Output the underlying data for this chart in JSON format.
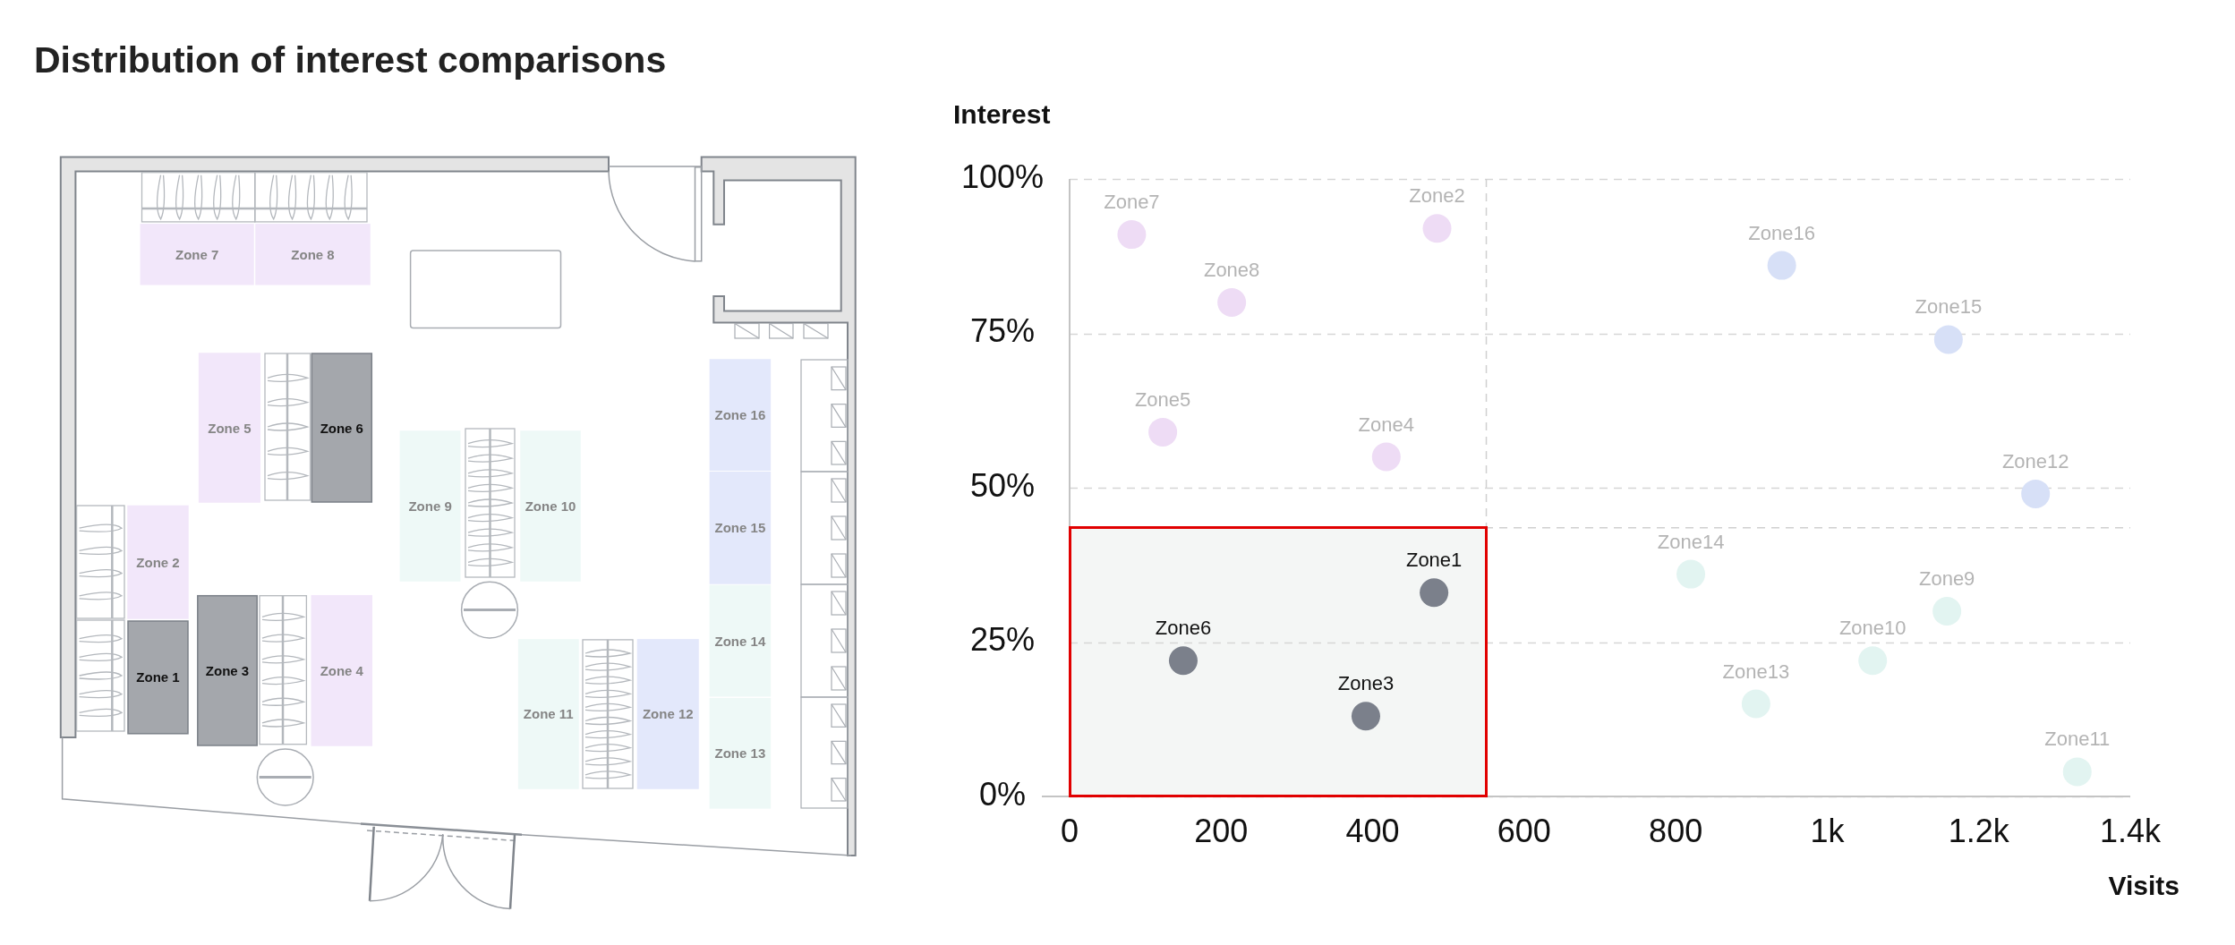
{
  "chart_data": [
    {
      "type": "other",
      "title": "Distribution of interest comparisons",
      "categories": [
        "Zone 1",
        "Zone 2",
        "Zone 3",
        "Zone 4",
        "Zone 5",
        "Zone 6",
        "Zone 7",
        "Zone 8",
        "Zone 9",
        "Zone 10",
        "Zone 11",
        "Zone 12",
        "Zone 13",
        "Zone 14",
        "Zone 15",
        "Zone 16"
      ],
      "colors": [
        "#a4a7ac",
        "#f2e7fa",
        "#a4a7ac",
        "#f2e7fa",
        "#f2e7fa",
        "#a4a7ac",
        "#f2e7fa",
        "#f2e7fa",
        "#eef9f7",
        "#eef9f7",
        "#eef9f7",
        "#e3e8fb",
        "#eef9f7",
        "#eef9f7",
        "#e3e8fb",
        "#e3e8fb"
      ]
    },
    {
      "type": "scatter",
      "xlabel": "Visits",
      "ylabel": "Interest",
      "xlim": [
        0,
        1400
      ],
      "xticks": [
        0,
        200,
        400,
        600,
        800,
        {
          "value": 1000,
          "label": "1k"
        },
        {
          "value": 1200,
          "label": "1.2k"
        },
        {
          "value": 1400,
          "label": "1.4k"
        }
      ],
      "ylim": [
        0,
        100
      ],
      "yticks": [
        {
          "value": 0,
          "label": "0%"
        },
        {
          "value": 25,
          "label": "25%"
        },
        {
          "value": 50,
          "label": "50%"
        },
        {
          "value": 75,
          "label": "75%"
        },
        {
          "value": 100,
          "label": "100%"
        }
      ],
      "grid": "y",
      "marker": "circle",
      "ref_lines": [
        {
          "axis": "x",
          "value": 550,
          "color": "#d0d0d0",
          "line_style": "dashed"
        },
        {
          "axis": "y",
          "value": 43.5,
          "color": "#d0d0d0",
          "line_style": "dashed"
        }
      ],
      "series": [
        {
          "name": "Zone1",
          "color": "#7b808b",
          "x": [
            481
          ],
          "values": [
            33
          ]
        },
        {
          "name": "Zone2",
          "color": "#eedcf5",
          "x": [
            485
          ],
          "values": [
            92
          ]
        },
        {
          "name": "Zone3",
          "color": "#7b808b",
          "x": [
            391
          ],
          "values": [
            13
          ]
        },
        {
          "name": "Zone4",
          "color": "#eedcf5",
          "x": [
            418
          ],
          "values": [
            55
          ]
        },
        {
          "name": "Zone5",
          "color": "#eedcf5",
          "x": [
            123
          ],
          "values": [
            59
          ]
        },
        {
          "name": "Zone6",
          "color": "#7b808b",
          "x": [
            150
          ],
          "values": [
            22
          ]
        },
        {
          "name": "Zone7",
          "color": "#eedcf5",
          "x": [
            82
          ],
          "values": [
            91
          ]
        },
        {
          "name": "Zone8",
          "color": "#eedcf5",
          "x": [
            214
          ],
          "values": [
            80
          ]
        },
        {
          "name": "Zone9",
          "color": "#e2f4f1",
          "x": [
            1158
          ],
          "values": [
            30
          ]
        },
        {
          "name": "Zone10",
          "color": "#e2f4f1",
          "x": [
            1060
          ],
          "values": [
            22
          ]
        },
        {
          "name": "Zone11",
          "color": "#e2f4f1",
          "x": [
            1330
          ],
          "values": [
            4
          ]
        },
        {
          "name": "Zone12",
          "color": "#d7e0f7",
          "x": [
            1275
          ],
          "values": [
            49
          ]
        },
        {
          "name": "Zone13",
          "color": "#e2f4f1",
          "x": [
            906
          ],
          "values": [
            15
          ]
        },
        {
          "name": "Zone14",
          "color": "#e2f4f1",
          "x": [
            820
          ],
          "values": [
            36
          ]
        },
        {
          "name": "Zone15",
          "color": "#d7e0f7",
          "x": [
            1160
          ],
          "values": [
            74
          ]
        },
        {
          "name": "Zone16",
          "color": "#d7e0f7",
          "x": [
            940
          ],
          "values": [
            86
          ]
        }
      ]
    }
  ]
}
